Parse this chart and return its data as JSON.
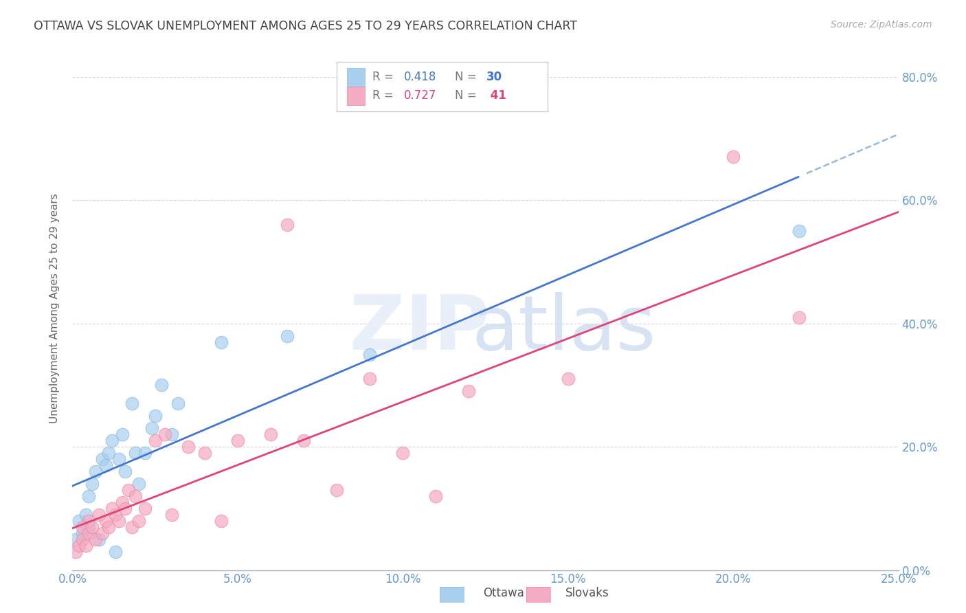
{
  "title": "OTTAWA VS SLOVAK UNEMPLOYMENT AMONG AGES 25 TO 29 YEARS CORRELATION CHART",
  "source": "Source: ZipAtlas.com",
  "ylabel": "Unemployment Among Ages 25 to 29 years",
  "xlim": [
    0.0,
    0.25
  ],
  "ylim": [
    0.0,
    0.85
  ],
  "x_ticks": [
    0.0,
    0.05,
    0.1,
    0.15,
    0.2,
    0.25
  ],
  "y_ticks": [
    0.0,
    0.2,
    0.4,
    0.6,
    0.8
  ],
  "ottawa_color": "#A8CFEE",
  "slovaks_color": "#F4AABF",
  "ottawa_line_color": "#4477CC",
  "slovaks_line_color": "#DD4477",
  "R_ottawa": 0.418,
  "N_ottawa": 30,
  "R_slovaks": 0.727,
  "N_slovaks": 41,
  "ottawa_points_x": [
    0.001,
    0.002,
    0.003,
    0.004,
    0.005,
    0.005,
    0.006,
    0.007,
    0.008,
    0.009,
    0.01,
    0.011,
    0.012,
    0.013,
    0.014,
    0.015,
    0.016,
    0.018,
    0.019,
    0.02,
    0.022,
    0.024,
    0.025,
    0.027,
    0.03,
    0.032,
    0.045,
    0.065,
    0.09,
    0.22
  ],
  "ottawa_points_y": [
    0.05,
    0.08,
    0.06,
    0.09,
    0.07,
    0.12,
    0.14,
    0.16,
    0.05,
    0.18,
    0.17,
    0.19,
    0.21,
    0.03,
    0.18,
    0.22,
    0.16,
    0.27,
    0.19,
    0.14,
    0.19,
    0.23,
    0.25,
    0.3,
    0.22,
    0.27,
    0.37,
    0.38,
    0.35,
    0.55
  ],
  "slovaks_points_x": [
    0.001,
    0.002,
    0.003,
    0.003,
    0.004,
    0.005,
    0.005,
    0.006,
    0.007,
    0.008,
    0.009,
    0.01,
    0.011,
    0.012,
    0.013,
    0.014,
    0.015,
    0.016,
    0.017,
    0.018,
    0.019,
    0.02,
    0.022,
    0.025,
    0.028,
    0.03,
    0.035,
    0.04,
    0.045,
    0.05,
    0.06,
    0.065,
    0.07,
    0.08,
    0.09,
    0.1,
    0.11,
    0.12,
    0.15,
    0.2,
    0.22
  ],
  "slovaks_points_y": [
    0.03,
    0.04,
    0.05,
    0.07,
    0.04,
    0.06,
    0.08,
    0.07,
    0.05,
    0.09,
    0.06,
    0.08,
    0.07,
    0.1,
    0.09,
    0.08,
    0.11,
    0.1,
    0.13,
    0.07,
    0.12,
    0.08,
    0.1,
    0.21,
    0.22,
    0.09,
    0.2,
    0.19,
    0.08,
    0.21,
    0.22,
    0.56,
    0.21,
    0.13,
    0.31,
    0.19,
    0.12,
    0.29,
    0.31,
    0.67,
    0.41
  ],
  "grid_color": "#CCCCCC",
  "tick_color": "#6699CC",
  "ylabel_color": "#666666",
  "title_color": "#444444",
  "source_color": "#AAAAAA"
}
